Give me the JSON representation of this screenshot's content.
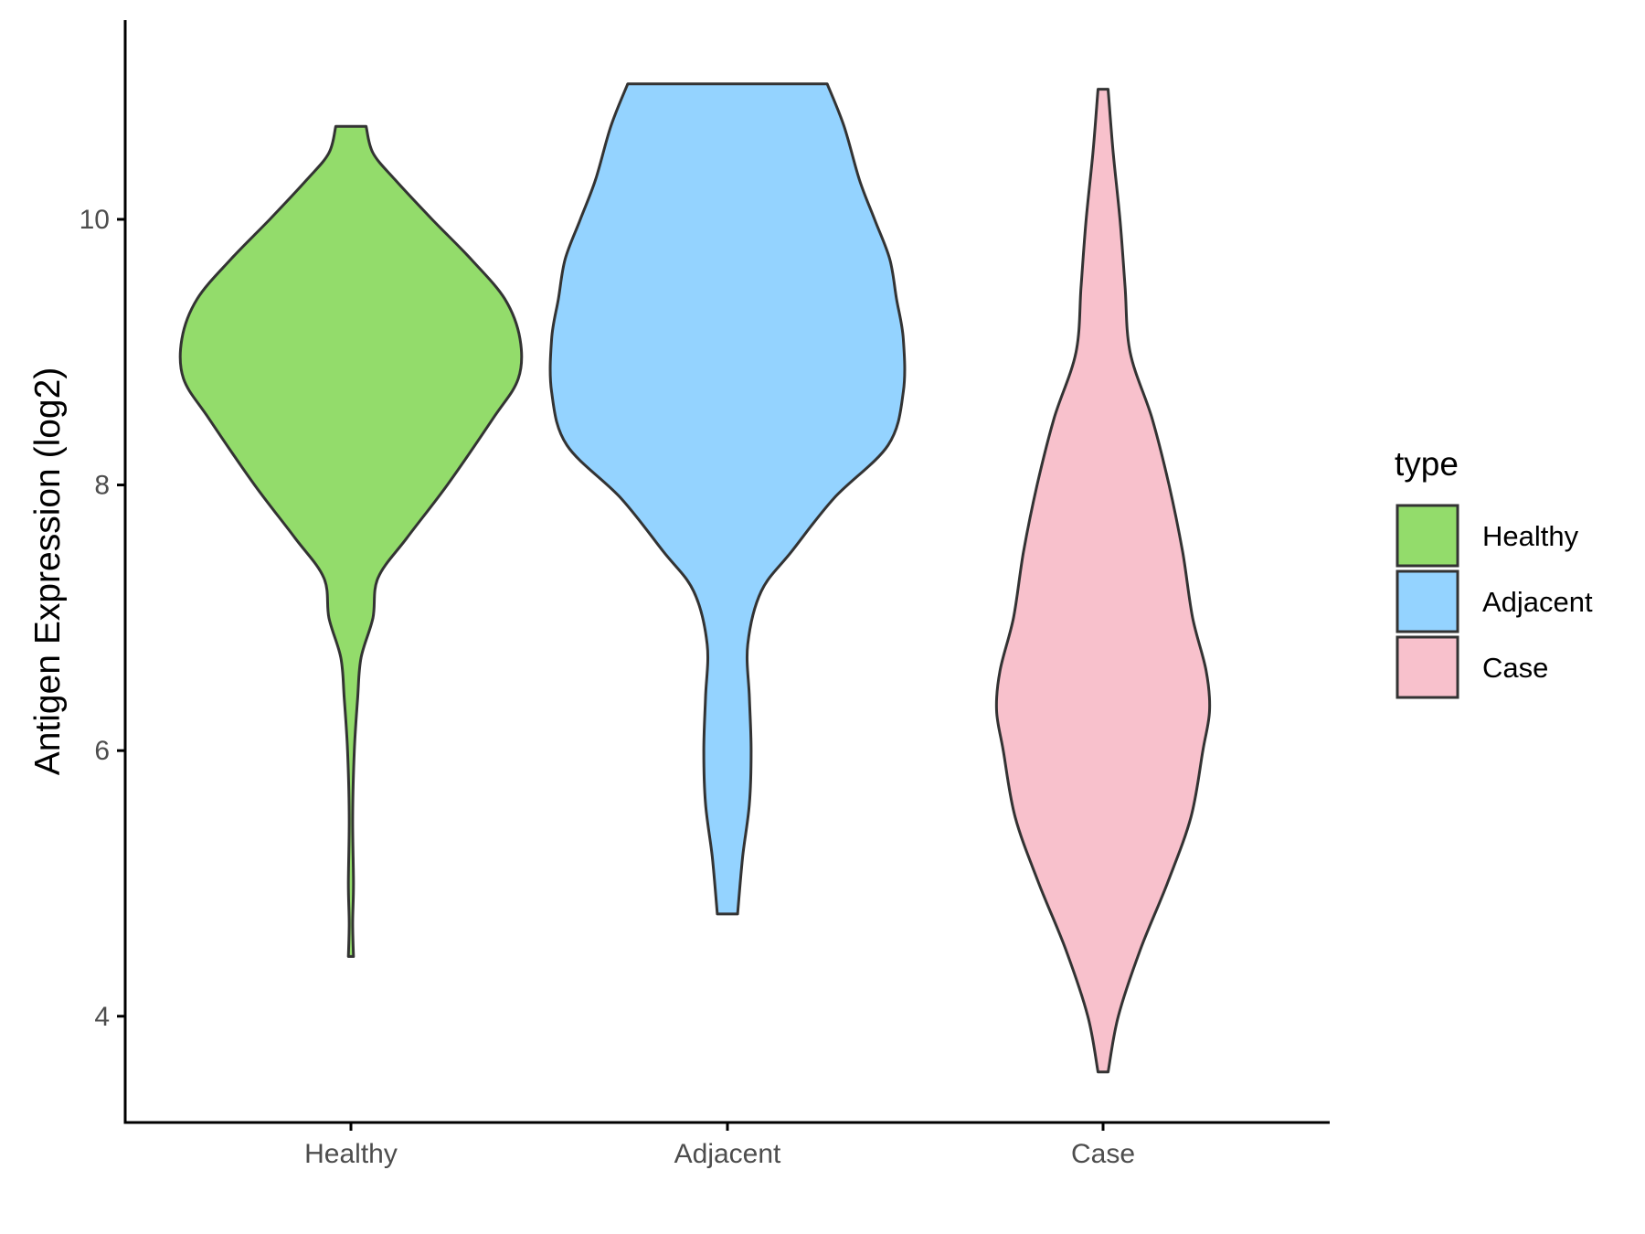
{
  "chart_data": {
    "type": "violin",
    "categories": [
      "Healthy",
      "Adjacent",
      "Case"
    ],
    "ylabel": "Antigen Expression (log2)",
    "xlabel": "",
    "ylim": [
      3.2,
      11.5
    ],
    "yticks": [
      4,
      6,
      8,
      10
    ],
    "legend": {
      "title": "type",
      "position": "right"
    },
    "grid": false,
    "series": [
      {
        "name": "Healthy",
        "color": "#93DC6B",
        "min": 4.45,
        "max": 10.7,
        "profile": [
          [
            10.7,
            0.09
          ],
          [
            10.5,
            0.13
          ],
          [
            10.3,
            0.26
          ],
          [
            10.0,
            0.48
          ],
          [
            9.7,
            0.71
          ],
          [
            9.4,
            0.91
          ],
          [
            9.1,
            1.0
          ],
          [
            8.8,
            0.99
          ],
          [
            8.5,
            0.84
          ],
          [
            8.0,
            0.57
          ],
          [
            7.6,
            0.33
          ],
          [
            7.3,
            0.16
          ],
          [
            7.0,
            0.13
          ],
          [
            6.7,
            0.06
          ],
          [
            6.4,
            0.04
          ],
          [
            6.0,
            0.02
          ],
          [
            5.5,
            0.01
          ],
          [
            5.0,
            0.015
          ],
          [
            4.7,
            0.01
          ],
          [
            4.45,
            0.015
          ]
        ]
      },
      {
        "name": "Adjacent",
        "color": "#94D3FF",
        "min": 4.77,
        "max": 11.02,
        "profile": [
          [
            11.02,
            0.59
          ],
          [
            10.7,
            0.69
          ],
          [
            10.3,
            0.78
          ],
          [
            10.0,
            0.87
          ],
          [
            9.7,
            0.96
          ],
          [
            9.4,
            1.0
          ],
          [
            9.1,
            1.04
          ],
          [
            8.7,
            1.04
          ],
          [
            8.3,
            0.95
          ],
          [
            7.9,
            0.63
          ],
          [
            7.5,
            0.38
          ],
          [
            7.2,
            0.2
          ],
          [
            6.8,
            0.12
          ],
          [
            6.4,
            0.13
          ],
          [
            6.0,
            0.14
          ],
          [
            5.6,
            0.13
          ],
          [
            5.2,
            0.09
          ],
          [
            4.77,
            0.06
          ]
        ]
      },
      {
        "name": "Case",
        "color": "#F8C1CC",
        "min": 3.58,
        "max": 10.98,
        "profile": [
          [
            10.98,
            0.03
          ],
          [
            10.5,
            0.06
          ],
          [
            10.0,
            0.1
          ],
          [
            9.5,
            0.13
          ],
          [
            9.0,
            0.16
          ],
          [
            8.5,
            0.29
          ],
          [
            8.0,
            0.39
          ],
          [
            7.5,
            0.47
          ],
          [
            7.0,
            0.53
          ],
          [
            6.6,
            0.61
          ],
          [
            6.3,
            0.63
          ],
          [
            6.0,
            0.59
          ],
          [
            5.5,
            0.52
          ],
          [
            5.0,
            0.38
          ],
          [
            4.5,
            0.22
          ],
          [
            4.0,
            0.09
          ],
          [
            3.58,
            0.03
          ]
        ]
      }
    ]
  }
}
